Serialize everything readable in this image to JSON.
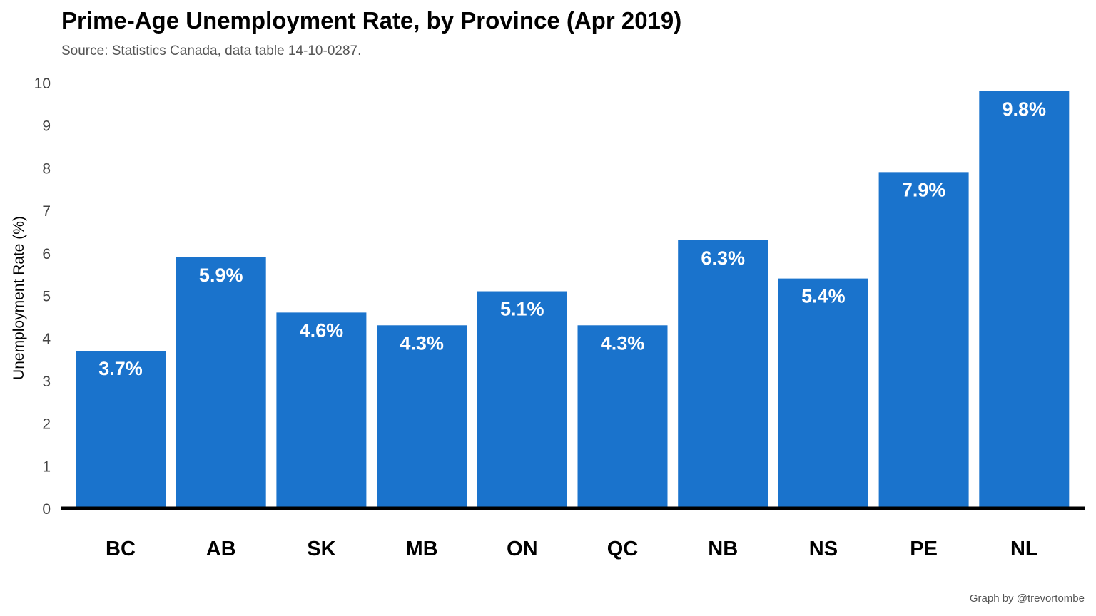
{
  "chart_data": {
    "type": "bar",
    "title": "Prime-Age Unemployment Rate, by Province (Apr 2019)",
    "subtitle": "Source: Statistics Canada, data table 14-10-0287.",
    "ylabel": "Unemployment Rate (%)",
    "xlabel": "",
    "categories": [
      "BC",
      "AB",
      "SK",
      "MB",
      "ON",
      "QC",
      "NB",
      "NS",
      "PE",
      "NL"
    ],
    "values": [
      3.7,
      5.9,
      4.6,
      4.3,
      5.1,
      4.3,
      6.3,
      5.4,
      7.9,
      9.8
    ],
    "value_labels": [
      "3.7%",
      "5.9%",
      "4.6%",
      "4.3%",
      "5.1%",
      "4.3%",
      "6.3%",
      "5.4%",
      "7.9%",
      "9.8%"
    ],
    "yticks": [
      0,
      1,
      2,
      3,
      4,
      5,
      6,
      7,
      8,
      9,
      10
    ],
    "ylim": [
      0,
      10
    ],
    "grid": false,
    "legend": "none",
    "bar_color": "#1a73cc",
    "axis_color": "#000000",
    "label_color": "#ffffff",
    "credit": "Graph by @trevortombe"
  }
}
